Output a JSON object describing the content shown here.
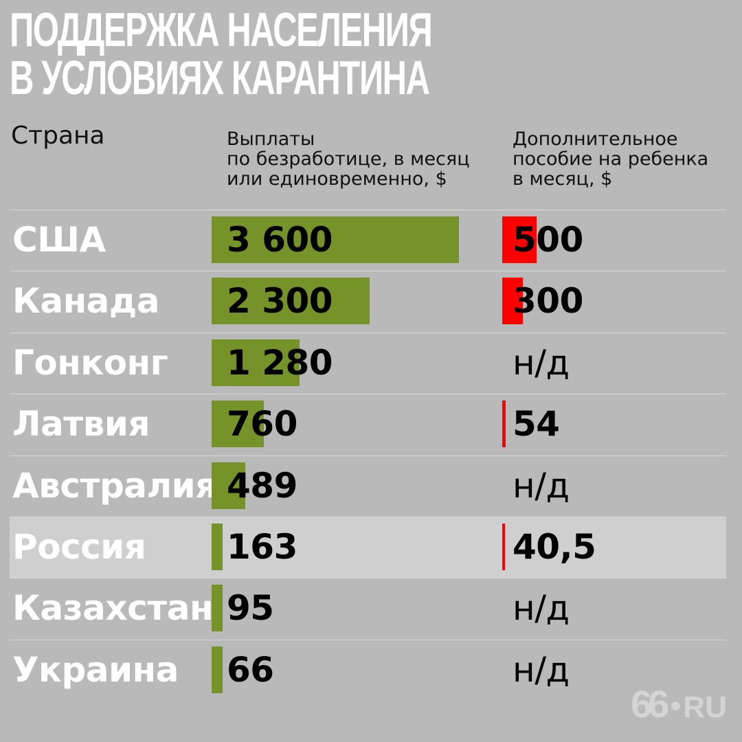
{
  "title_lines": [
    "ПОДДЕРЖКА НАСЕЛЕНИЯ",
    "В УСЛОВИЯХ КАРАНТИНА"
  ],
  "headers": {
    "country": "Страна",
    "payments": [
      "Выплаты",
      "по безработице, в месяц",
      "или единовременно, $"
    ],
    "child": [
      "Дополнительное",
      "пособие на ребенка",
      "в месяц, $"
    ]
  },
  "chart_data": {
    "type": "table",
    "columns": [
      "Страна",
      "Выплаты по безработице, в месяц или единовременно, $",
      "Дополнительное пособие на ребенка в месяц, $"
    ],
    "rows": [
      {
        "country": "США",
        "payment": 3600,
        "payment_label": "3 600",
        "child": 500,
        "child_label": "500"
      },
      {
        "country": "Канада",
        "payment": 2300,
        "payment_label": "2 300",
        "child": 300,
        "child_label": "300"
      },
      {
        "country": "Гонконг",
        "payment": 1280,
        "payment_label": "1 280",
        "child": null,
        "child_label": "н/д"
      },
      {
        "country": "Латвия",
        "payment": 760,
        "payment_label": "760",
        "child": 54,
        "child_label": "54"
      },
      {
        "country": "Австралия",
        "payment": 489,
        "payment_label": "489",
        "child": null,
        "child_label": "н/д"
      },
      {
        "country": "Россия",
        "payment": 163,
        "payment_label": "163",
        "child": 40.5,
        "child_label": "40,5"
      },
      {
        "country": "Казахстан",
        "payment": 95,
        "payment_label": "95",
        "child": null,
        "child_label": "н/д"
      },
      {
        "country": "Украина",
        "payment": 66,
        "payment_label": "66",
        "child": null,
        "child_label": "н/д"
      }
    ],
    "highlight_country": "Россия",
    "colors": {
      "payment_bar": "#76932a",
      "child_bar": "#ff0000",
      "highlight_row": "#cfcfcf"
    }
  },
  "logo": {
    "number": "66",
    "suffix": "RU"
  }
}
